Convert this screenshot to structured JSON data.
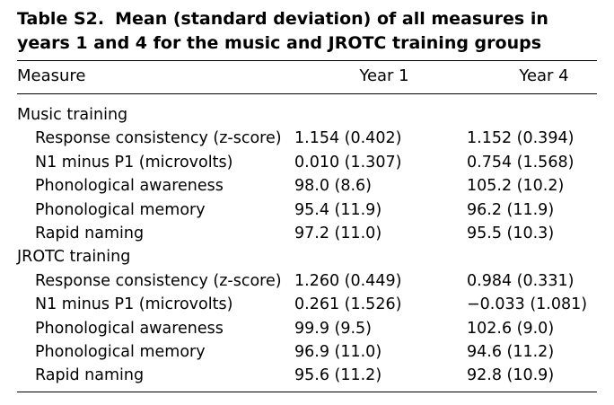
{
  "caption": {
    "label": "Table S2.",
    "text": "Mean (standard deviation) of all measures in years 1 and 4 for the music and JROTC training groups"
  },
  "header": {
    "measure": "Measure",
    "year1": "Year 1",
    "year4": "Year 4"
  },
  "groups": [
    {
      "title": "Music training",
      "rows": [
        {
          "measure": "Response consistency (z-score)",
          "year1": "1.154 (0.402)",
          "year4": "1.152 (0.394)"
        },
        {
          "measure": "N1 minus P1 (microvolts)",
          "year1": "0.010 (1.307)",
          "year4": "0.754 (1.568)"
        },
        {
          "measure": "Phonological awareness",
          "year1": "98.0 (8.6)",
          "year4": "105.2 (10.2)"
        },
        {
          "measure": "Phonological memory",
          "year1": "95.4 (11.9)",
          "year4": "96.2 (11.9)"
        },
        {
          "measure": "Rapid naming",
          "year1": "97.2 (11.0)",
          "year4": "95.5 (10.3)"
        }
      ]
    },
    {
      "title": "JROTC training",
      "rows": [
        {
          "measure": "Response consistency (z-score)",
          "year1": "1.260 (0.449)",
          "year4": "0.984 (0.331)"
        },
        {
          "measure": "N1 minus P1 (microvolts)",
          "year1": "0.261 (1.526)",
          "year4": "−0.033 (1.081)"
        },
        {
          "measure": "Phonological awareness",
          "year1": "99.9 (9.5)",
          "year4": "102.6 (9.0)"
        },
        {
          "measure": "Phonological memory",
          "year1": "96.9 (11.0)",
          "year4": "94.6 (11.2)"
        },
        {
          "measure": "Rapid naming",
          "year1": "95.6 (11.2)",
          "year4": "92.8 (10.9)"
        }
      ]
    }
  ]
}
